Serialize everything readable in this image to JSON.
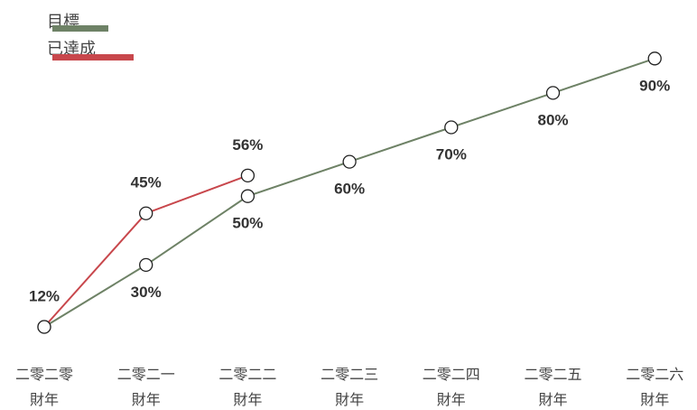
{
  "chart_data": {
    "type": "line",
    "categories": [
      "二零二零\n財年",
      "二零二一\n財年",
      "二零二二\n財年",
      "二零二三\n財年",
      "二零二四\n財年",
      "二零二五\n財年",
      "二零二六\n財年"
    ],
    "series": [
      {
        "name": "目標",
        "color": "#6e8266",
        "values": [
          12,
          30,
          50,
          60,
          70,
          80,
          90
        ],
        "value_labels": [
          null,
          "30%",
          "50%",
          "60%",
          "70%",
          "80%",
          "90%"
        ],
        "label_position": "below"
      },
      {
        "name": "已達成",
        "color": "#c8474c",
        "values": [
          12,
          45,
          56,
          null,
          null,
          null,
          null
        ],
        "value_labels": [
          "12%",
          "45%",
          "56%",
          null,
          null,
          null,
          null
        ],
        "label_position": "above"
      }
    ],
    "ylim": [
      0,
      100
    ],
    "grid": false,
    "legend": "top-left"
  }
}
